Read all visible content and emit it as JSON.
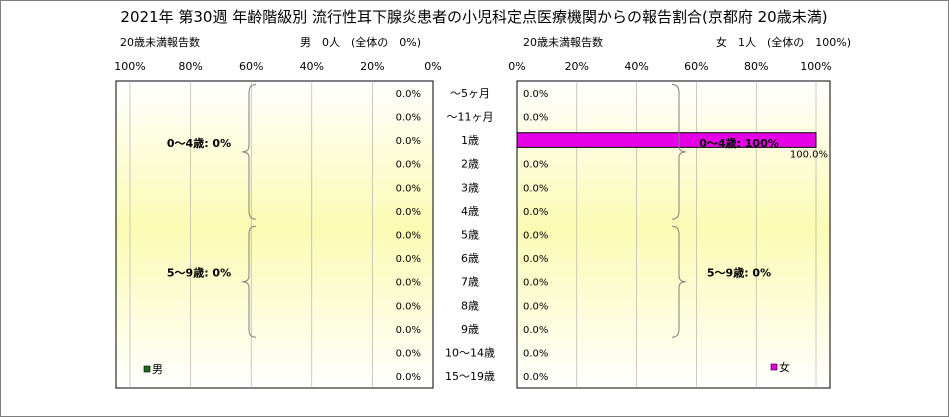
{
  "chart_data": [
    {
      "type": "bar",
      "title": "2021年 第30週 年齢階級別 流行性耳下腺炎患者の小児科定点医療機関からの報告割合(京都府 20歳未満)",
      "side": "left",
      "subtitle_left": "20歳未満報告数",
      "subtitle_right": "男　0人　(全体の　0%)",
      "legend": "男",
      "legend_position": "bottom-left",
      "color": "#1e6b1e",
      "axis_ticks": [
        "100%",
        "80%",
        "60%",
        "40%",
        "20%",
        "0%"
      ],
      "xlim": [
        0,
        100
      ],
      "grid": true,
      "categories": [
        "～5ヶ月",
        "～11ヶ月",
        "1歳",
        "2歳",
        "3歳",
        "4歳",
        "5歳",
        "6歳",
        "7歳",
        "8歳",
        "9歳",
        "10～14歳",
        "15～19歳"
      ],
      "values": [
        0,
        0,
        0,
        0,
        0,
        0,
        0,
        0,
        0,
        0,
        0,
        0,
        0
      ],
      "value_labels": [
        "0.0%",
        "0.0%",
        "0.0%",
        "0.0%",
        "0.0%",
        "0.0%",
        "0.0%",
        "0.0%",
        "0.0%",
        "0.0%",
        "0.0%",
        "0.0%",
        "0.0%"
      ],
      "groups": [
        {
          "label": "0～4歳: 0%",
          "from": 0,
          "to": 5
        },
        {
          "label": "5～9歳: 0%",
          "from": 6,
          "to": 10
        }
      ]
    },
    {
      "type": "bar",
      "side": "right",
      "subtitle_left": "20歳未満報告数",
      "subtitle_right": "女　1人　(全体の　100%)",
      "legend": "女",
      "legend_position": "bottom-right",
      "color": "#e600e6",
      "axis_ticks": [
        "0%",
        "20%",
        "40%",
        "60%",
        "80%",
        "100%"
      ],
      "xlim": [
        0,
        100
      ],
      "grid": true,
      "categories": [
        "～5ヶ月",
        "～11ヶ月",
        "1歳",
        "2歳",
        "3歳",
        "4歳",
        "5歳",
        "6歳",
        "7歳",
        "8歳",
        "9歳",
        "10～14歳",
        "15～19歳"
      ],
      "values": [
        0,
        0,
        100,
        0,
        0,
        0,
        0,
        0,
        0,
        0,
        0,
        0,
        0
      ],
      "value_labels": [
        "0.0%",
        "0.0%",
        "100.0%",
        "0.0%",
        "0.0%",
        "0.0%",
        "0.0%",
        "0.0%",
        "0.0%",
        "0.0%",
        "0.0%",
        "0.0%",
        "0.0%"
      ],
      "groups": [
        {
          "label": "0～4歳: 100%",
          "from": 0,
          "to": 5
        },
        {
          "label": "5～9歳: 0%",
          "from": 6,
          "to": 10
        }
      ]
    }
  ]
}
